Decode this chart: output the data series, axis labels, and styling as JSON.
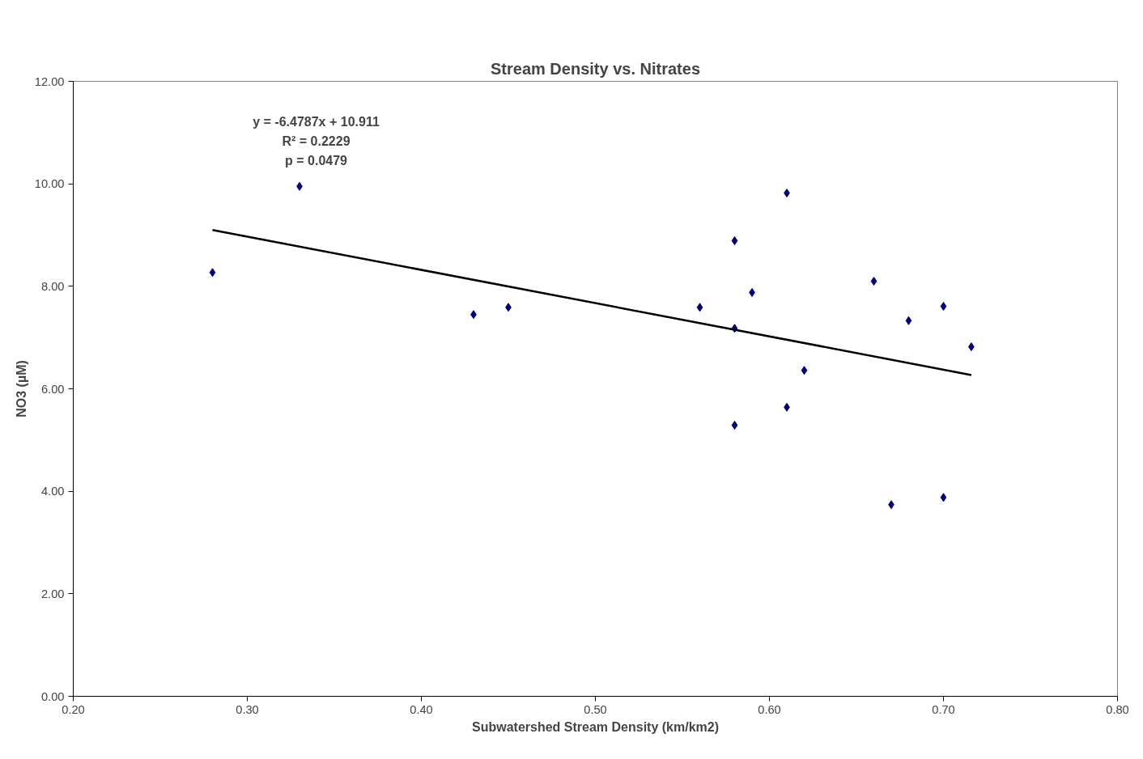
{
  "chart_data": {
    "type": "scatter",
    "title": "Stream Density vs. Nitrates",
    "xlabel": "Subwatershed Stream Density (km/km2)",
    "ylabel": "NO3 (µM)",
    "x": [
      0.28,
      0.33,
      0.43,
      0.45,
      0.56,
      0.58,
      0.58,
      0.58,
      0.59,
      0.61,
      0.61,
      0.62,
      0.66,
      0.67,
      0.68,
      0.7,
      0.7,
      0.716
    ],
    "series": [
      {
        "color": "#000080",
        "marker": "diamond",
        "values": [
          8.27,
          9.95,
          7.45,
          7.59,
          7.59,
          8.89,
          7.18,
          5.29,
          7.88,
          9.82,
          5.64,
          6.36,
          8.1,
          3.74,
          7.33,
          7.61,
          3.88,
          6.82
        ]
      },
      {
        "type": "line",
        "color": "#000000",
        "line_style": "solid",
        "x": [
          0.28,
          0.716
        ],
        "values": [
          9.1,
          6.27
        ]
      }
    ],
    "xlim": [
      0.2,
      0.8
    ],
    "xticks": [
      {
        "value": 0.2,
        "label": "0.20"
      },
      {
        "value": 0.3,
        "label": "0.30"
      },
      {
        "value": 0.4,
        "label": "0.40"
      },
      {
        "value": 0.5,
        "label": "0.50"
      },
      {
        "value": 0.6,
        "label": "0.60"
      },
      {
        "value": 0.7,
        "label": "0.70"
      },
      {
        "value": 0.8,
        "label": "0.80"
      }
    ],
    "ylim": [
      0,
      12
    ],
    "yticks": [
      {
        "value": 0,
        "label": "0.00"
      },
      {
        "value": 2,
        "label": "2.00"
      },
      {
        "value": 4,
        "label": "4.00"
      },
      {
        "value": 6,
        "label": "6.00"
      },
      {
        "value": 8,
        "label": "8.00"
      },
      {
        "value": 10,
        "label": "10.00"
      },
      {
        "value": 12,
        "label": "12.00"
      }
    ],
    "annotations": [
      "y = -6.4787x + 10.911",
      "R² = 0.2229",
      "p = 0.0479"
    ],
    "grid": false
  }
}
